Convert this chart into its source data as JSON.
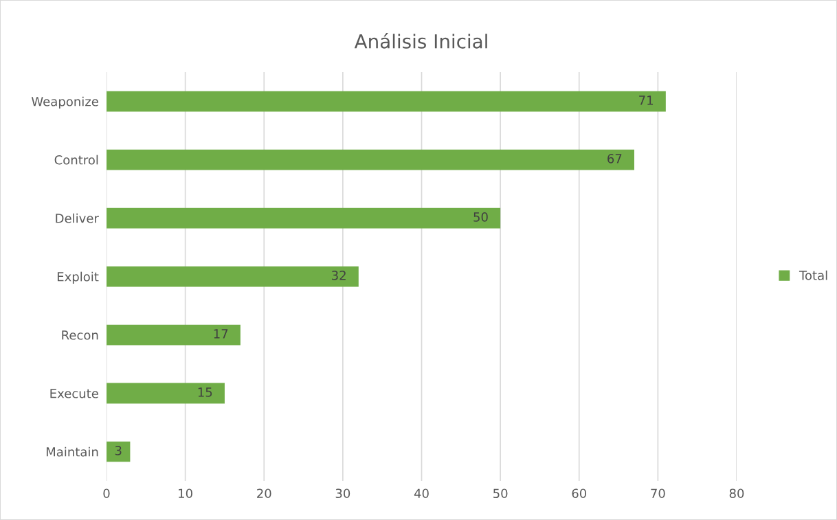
{
  "chart_data": {
    "type": "bar",
    "orientation": "horizontal",
    "title": "Análisis Inicial",
    "categories": [
      "Weaponize",
      "Control",
      "Deliver",
      "Exploit",
      "Recon",
      "Execute",
      "Maintain"
    ],
    "series": [
      {
        "name": "Total",
        "color": "#70ad47",
        "values": [
          71,
          67,
          50,
          32,
          17,
          15,
          3
        ]
      }
    ],
    "xlim": [
      0,
      80
    ],
    "xticks": [
      0,
      10,
      20,
      30,
      40,
      50,
      60,
      70,
      80
    ],
    "grid": "x",
    "legend": "right",
    "data_labels": true
  }
}
